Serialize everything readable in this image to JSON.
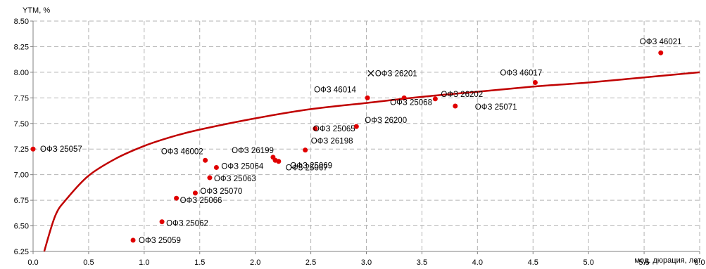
{
  "chart_data": {
    "type": "scatter",
    "ylabel": "YTM, %",
    "xlabel": "мод. дюрация, лет",
    "xlim": [
      0,
      6
    ],
    "ylim": [
      6.25,
      8.5
    ],
    "x_ticks": [
      "0.0",
      "0.5",
      "1.0",
      "1.5",
      "2.0",
      "2.5",
      "3.0",
      "3.5",
      "4.0",
      "4.5",
      "5.0",
      "5.5",
      "6.0"
    ],
    "y_ticks": [
      "6.25",
      "6.50",
      "6.75",
      "7.00",
      "7.25",
      "7.50",
      "7.75",
      "8.00",
      "8.25",
      "8.50"
    ],
    "grid": true,
    "colors": {
      "points": "#e00000",
      "curve": "#c00000",
      "grid": "#b3b3b3"
    },
    "points": [
      {
        "label": "ОФЗ 25057",
        "x": 0.0,
        "y": 7.25,
        "marker": "dot"
      },
      {
        "label": "ОФЗ 25059",
        "x": 0.9,
        "y": 6.36,
        "marker": "dot"
      },
      {
        "label": "ОФЗ 25062",
        "x": 1.16,
        "y": 6.54,
        "marker": "dot"
      },
      {
        "label": "ОФЗ 25066",
        "x": 1.29,
        "y": 6.77,
        "marker": "dot"
      },
      {
        "label": "ОФЗ 25070",
        "x": 1.46,
        "y": 6.82,
        "marker": "dot"
      },
      {
        "label": "ОФЗ 46002",
        "x": 1.55,
        "y": 7.14,
        "marker": "dot"
      },
      {
        "label": "ОФЗ 25063",
        "x": 1.59,
        "y": 6.97,
        "marker": "dot"
      },
      {
        "label": "ОФЗ 25064",
        "x": 1.65,
        "y": 7.07,
        "marker": "dot"
      },
      {
        "label": "ОФЗ 26199",
        "x": 2.16,
        "y": 7.17,
        "marker": "dot"
      },
      {
        "label": "ОФЗ 25069",
        "x": 2.18,
        "y": 7.14,
        "marker": "dot"
      },
      {
        "label": "ОФЗ 25067",
        "x": 2.21,
        "y": 7.13,
        "marker": "dot"
      },
      {
        "label": "ОФЗ 26198",
        "x": 2.45,
        "y": 7.24,
        "marker": "dot"
      },
      {
        "label": "ОФЗ 25065",
        "x": 2.54,
        "y": 7.45,
        "marker": "dot"
      },
      {
        "label": "ОФЗ 26200",
        "x": 2.91,
        "y": 7.47,
        "marker": "dot"
      },
      {
        "label": "ОФЗ 46014",
        "x": 3.01,
        "y": 7.75,
        "marker": "dot"
      },
      {
        "label": "ОФЗ 26201",
        "x": 3.04,
        "y": 7.99,
        "marker": "x"
      },
      {
        "label": "ОФЗ 25068",
        "x": 3.34,
        "y": 7.75,
        "marker": "dot"
      },
      {
        "label": "ОФЗ 26202",
        "x": 3.62,
        "y": 7.74,
        "marker": "dot"
      },
      {
        "label": "ОФЗ 25071",
        "x": 3.8,
        "y": 7.67,
        "marker": "dot"
      },
      {
        "label": "ОФЗ 46017",
        "x": 4.52,
        "y": 7.9,
        "marker": "dot"
      },
      {
        "label": "ОФЗ 46021",
        "x": 5.65,
        "y": 8.19,
        "marker": "dot"
      }
    ],
    "fit_curve": {
      "x": [
        0.1,
        0.2,
        0.3,
        0.5,
        0.75,
        1.0,
        1.25,
        1.5,
        2.0,
        2.5,
        3.0,
        3.5,
        4.0,
        4.5,
        5.0,
        5.5,
        6.0
      ],
      "y": [
        6.25,
        6.6,
        6.76,
        6.99,
        7.16,
        7.28,
        7.37,
        7.44,
        7.55,
        7.64,
        7.7,
        7.76,
        7.81,
        7.86,
        7.9,
        7.95,
        8.0
      ]
    }
  }
}
